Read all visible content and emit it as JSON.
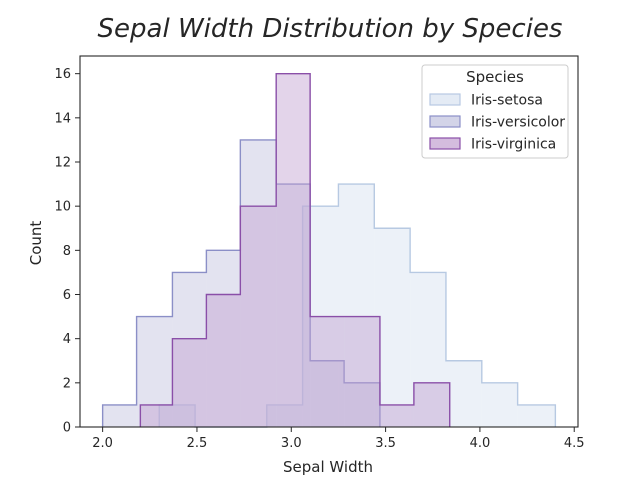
{
  "chart_data": {
    "type": "histogram",
    "title": "Sepal Width Distribution by Species",
    "xlabel": "Sepal Width",
    "ylabel": "Count",
    "xlim": [
      1.88,
      4.52
    ],
    "ylim": [
      0,
      16.8
    ],
    "xticks": [
      "2.0",
      "2.5",
      "3.0",
      "3.5",
      "4.0",
      "4.5"
    ],
    "xtick_values": [
      2.0,
      2.5,
      3.0,
      3.5,
      4.0,
      4.5
    ],
    "yticks": [
      "0",
      "2",
      "4",
      "6",
      "8",
      "10",
      "12",
      "14",
      "16"
    ],
    "ytick_values": [
      0,
      2,
      4,
      6,
      8,
      10,
      12,
      14,
      16
    ],
    "grid": false,
    "legend": {
      "title": "Species",
      "placement": "top-right"
    },
    "series": [
      {
        "name": "Iris-setosa",
        "fill": "#dde6f2",
        "edge": "#b7c9e2",
        "fill_opacity": 0.55,
        "bin_edges": [
          2.3,
          2.49,
          2.68,
          2.87,
          3.06,
          3.25,
          3.44,
          3.63,
          3.82,
          4.01,
          4.2,
          4.4
        ],
        "values": [
          1,
          0,
          0,
          1,
          10,
          11,
          9,
          7,
          3,
          2,
          1
        ]
      },
      {
        "name": "Iris-versicolor",
        "fill": "#c0c2de",
        "edge": "#8b8fc7",
        "fill_opacity": 0.45,
        "bin_edges": [
          2.0,
          2.18,
          2.37,
          2.55,
          2.73,
          2.92,
          3.1,
          3.28,
          3.47
        ],
        "values": [
          1,
          5,
          7,
          8,
          13,
          11,
          3,
          2
        ]
      },
      {
        "name": "Iris-virginica",
        "fill": "#c29fd0",
        "edge": "#8a4fa8",
        "fill_opacity": 0.45,
        "bin_edges": [
          2.2,
          2.37,
          2.55,
          2.73,
          2.92,
          3.1,
          3.28,
          3.47,
          3.65,
          3.84
        ],
        "values": [
          1,
          4,
          6,
          10,
          16,
          5,
          5,
          1,
          2
        ]
      }
    ]
  }
}
